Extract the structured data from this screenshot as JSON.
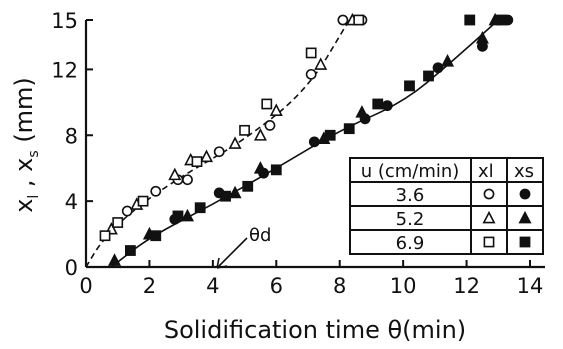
{
  "chart_data": {
    "type": "scatter",
    "xlabel": "Solidification time θ(min)",
    "ylabel_main": "x",
    "ylabel_sub1": "l",
    "ylabel_mid": " , x",
    "ylabel_sub2": "s",
    "ylabel_unit": " (mm)",
    "xlim": [
      0,
      14
    ],
    "ylim": [
      0,
      15
    ],
    "xticks": [
      0,
      2,
      4,
      6,
      8,
      10,
      12,
      14
    ],
    "yticks": [
      0,
      4,
      8,
      12,
      15
    ],
    "annotation": {
      "label": "θd",
      "x": 4.0,
      "y": 0
    },
    "legend": {
      "header_u": "u (cm/min)",
      "header_xl": "xl",
      "header_xs": "xs",
      "rows": [
        {
          "u": "3.6",
          "xl_marker": "circle-open",
          "xs_marker": "circle-filled"
        },
        {
          "u": "5.2",
          "xl_marker": "triangle-open",
          "xs_marker": "triangle-filled"
        },
        {
          "u": "6.9",
          "xl_marker": "square-open",
          "xs_marker": "square-filled"
        }
      ]
    },
    "fit_lines": [
      {
        "style": "dashed",
        "points": [
          [
            0,
            0
          ],
          [
            0.5,
            1.6
          ],
          [
            1.5,
            3.5
          ],
          [
            3,
            5.5
          ],
          [
            5,
            7.7
          ],
          [
            7,
            10.8
          ],
          [
            8.3,
            15
          ]
        ]
      },
      {
        "style": "solid",
        "points": [
          [
            0.8,
            0
          ],
          [
            2,
            1.8
          ],
          [
            4,
            3.8
          ],
          [
            6,
            6.0
          ],
          [
            8,
            8.3
          ],
          [
            10,
            10.0
          ],
          [
            11.5,
            12.4
          ],
          [
            13,
            15
          ]
        ]
      }
    ],
    "series": [
      {
        "name": "3.6 xl",
        "marker": "circle-open",
        "points": [
          [
            1.3,
            3.4
          ],
          [
            2.2,
            4.6
          ],
          [
            2.9,
            5.3
          ],
          [
            3.2,
            5.3
          ],
          [
            4.2,
            7.0
          ],
          [
            5.8,
            8.6
          ],
          [
            7.1,
            11.7
          ],
          [
            8.1,
            15
          ],
          [
            8.7,
            15
          ]
        ]
      },
      {
        "name": "5.2 xl",
        "marker": "triangle-open",
        "points": [
          [
            0.8,
            2.3
          ],
          [
            1.6,
            3.8
          ],
          [
            2.8,
            5.6
          ],
          [
            3.3,
            6.5
          ],
          [
            3.8,
            6.7
          ],
          [
            4.7,
            7.5
          ],
          [
            5.5,
            8.0
          ],
          [
            6.0,
            9.5
          ],
          [
            7.4,
            12.3
          ],
          [
            8.4,
            15
          ]
        ]
      },
      {
        "name": "6.9 xl",
        "marker": "square-open",
        "points": [
          [
            0.6,
            1.9
          ],
          [
            1.0,
            2.7
          ],
          [
            1.8,
            4.0
          ],
          [
            3.5,
            6.4
          ],
          [
            5.0,
            8.3
          ],
          [
            5.7,
            9.9
          ],
          [
            7.1,
            13.0
          ],
          [
            8.6,
            15
          ]
        ]
      },
      {
        "name": "3.6 xs",
        "marker": "circle-filled",
        "points": [
          [
            2.8,
            2.9
          ],
          [
            4.2,
            4.5
          ],
          [
            5.6,
            5.7
          ],
          [
            7.2,
            7.6
          ],
          [
            8.8,
            9.0
          ],
          [
            9.5,
            9.8
          ],
          [
            11.1,
            12.1
          ],
          [
            12.5,
            13.4
          ],
          [
            13.3,
            15
          ]
        ]
      },
      {
        "name": "5.2 xs",
        "marker": "triangle-filled",
        "points": [
          [
            0.9,
            0.4
          ],
          [
            2.0,
            2.0
          ],
          [
            3.2,
            3.1
          ],
          [
            4.7,
            4.5
          ],
          [
            5.5,
            6.0
          ],
          [
            7.5,
            7.8
          ],
          [
            8.7,
            9.4
          ],
          [
            11.4,
            12.5
          ],
          [
            12.5,
            13.9
          ],
          [
            12.9,
            15
          ]
        ]
      },
      {
        "name": "6.9 xs",
        "marker": "square-filled",
        "points": [
          [
            1.4,
            1.0
          ],
          [
            2.2,
            1.9
          ],
          [
            2.9,
            3.1
          ],
          [
            3.6,
            3.6
          ],
          [
            4.4,
            4.3
          ],
          [
            5.1,
            4.9
          ],
          [
            6.0,
            5.9
          ],
          [
            7.7,
            8.0
          ],
          [
            8.3,
            8.4
          ],
          [
            9.2,
            9.9
          ],
          [
            10.2,
            11.0
          ],
          [
            10.8,
            11.6
          ],
          [
            12.1,
            15
          ],
          [
            13.1,
            15
          ]
        ]
      }
    ]
  }
}
